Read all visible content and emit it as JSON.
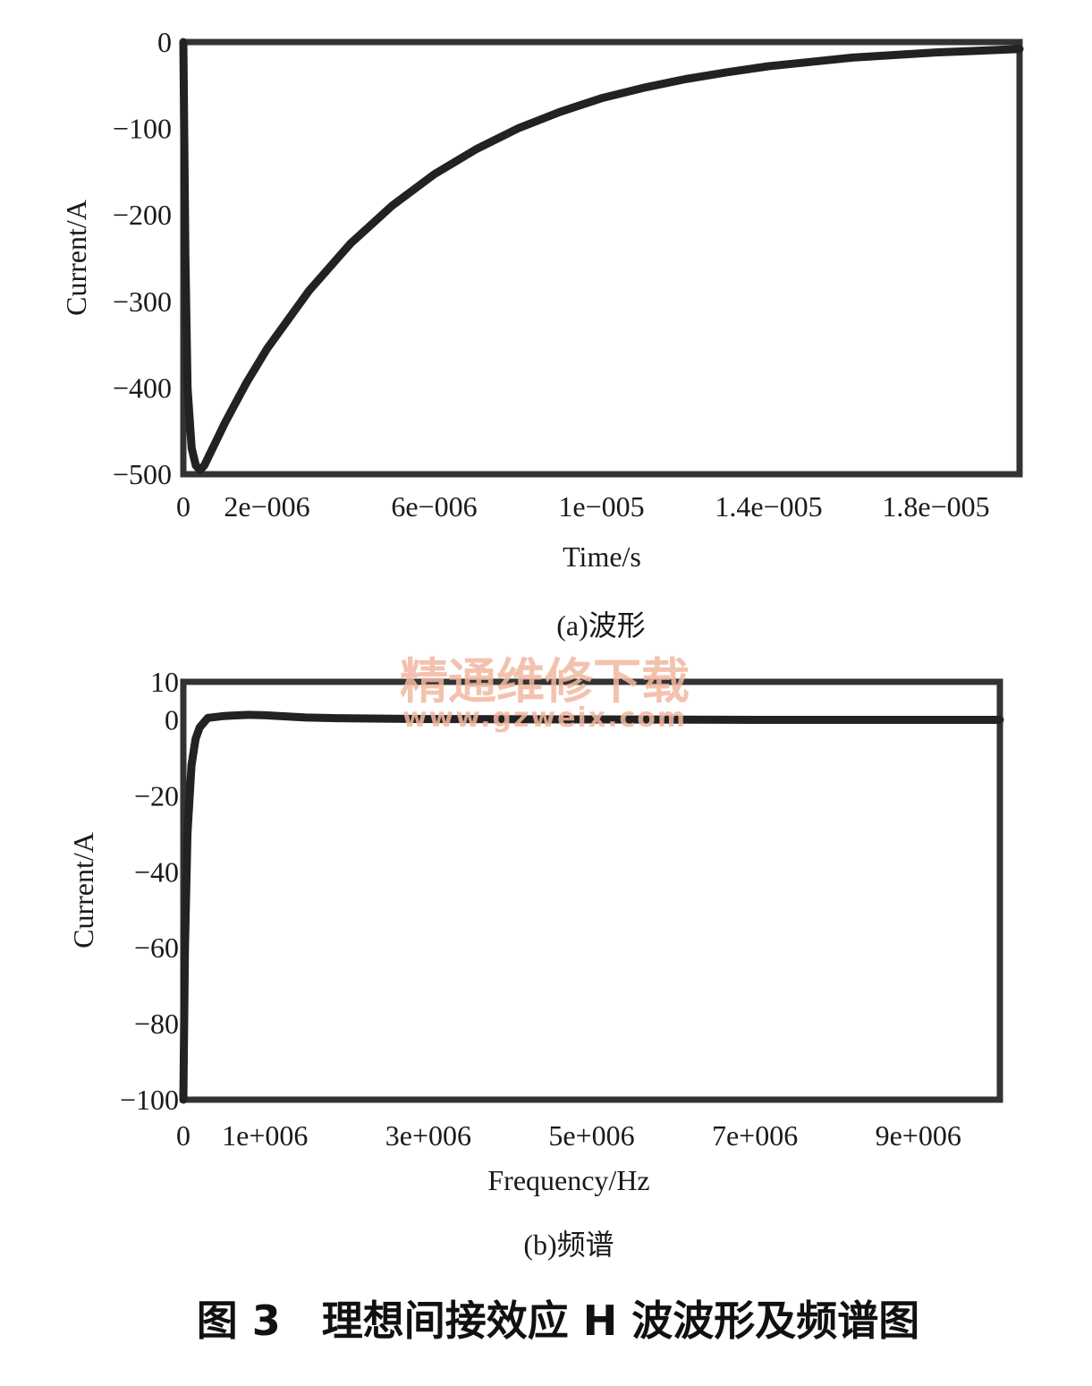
{
  "chart_data": [
    {
      "type": "line",
      "caption": "(a)波形",
      "xlabel": "Time/s",
      "ylabel": "Current/A",
      "xlim": [
        0,
        2e-05
      ],
      "ylim": [
        -500,
        0
      ],
      "x_ticks": [
        {
          "value": 0,
          "label": "0"
        },
        {
          "value": 2e-06,
          "label": "2e−006"
        },
        {
          "value": 6e-06,
          "label": "6e−006"
        },
        {
          "value": 1e-05,
          "label": "1e−005"
        },
        {
          "value": 1.4e-05,
          "label": "1.4e−005"
        },
        {
          "value": 1.8e-05,
          "label": "1.8e−005"
        }
      ],
      "y_ticks": [
        {
          "value": 0,
          "label": "0"
        },
        {
          "value": -100,
          "label": "−100"
        },
        {
          "value": -200,
          "label": "−200"
        },
        {
          "value": -300,
          "label": "−300"
        },
        {
          "value": -400,
          "label": "−400"
        },
        {
          "value": -500,
          "label": "−500"
        }
      ],
      "series": [
        {
          "x": [
            0,
            5e-08,
            1e-07,
            2e-07,
            3e-07,
            4e-07,
            5e-07,
            8e-07,
            1e-06,
            1.5e-06,
            2e-06,
            3e-06,
            4e-06,
            5e-06,
            6e-06,
            7e-06,
            8e-06,
            9e-06,
            1e-05,
            1.1e-05,
            1.2e-05,
            1.3e-05,
            1.4e-05,
            1.5e-05,
            1.6e-05,
            1.7e-05,
            1.8e-05,
            1.9e-05,
            2e-05
          ],
          "y": [
            0,
            -250,
            -400,
            -470,
            -490,
            -495,
            -490,
            -460,
            -440,
            -395,
            -355,
            -288,
            -233,
            -189,
            -153,
            -124,
            -100,
            -81,
            -65,
            -53,
            -43,
            -35,
            -28,
            -23,
            -18,
            -15,
            -12,
            -10,
            -8
          ]
        }
      ]
    },
    {
      "type": "line",
      "caption": "(b)频谱",
      "xlabel": "Frequency/Hz",
      "ylabel": "Current/A",
      "xlim": [
        0,
        10000000
      ],
      "ylim": [
        -100,
        10
      ],
      "x_ticks": [
        {
          "value": 0,
          "label": "0"
        },
        {
          "value": 1000000,
          "label": "1e+006"
        },
        {
          "value": 3000000,
          "label": "3e+006"
        },
        {
          "value": 5000000,
          "label": "5e+006"
        },
        {
          "value": 7000000,
          "label": "7e+006"
        },
        {
          "value": 9000000,
          "label": "9e+006"
        }
      ],
      "y_ticks": [
        {
          "value": 10,
          "label": "10"
        },
        {
          "value": 0,
          "label": "0"
        },
        {
          "value": -20,
          "label": "−20"
        },
        {
          "value": -40,
          "label": "−40"
        },
        {
          "value": -60,
          "label": "−60"
        },
        {
          "value": -80,
          "label": "−80"
        },
        {
          "value": -100,
          "label": "−100"
        }
      ],
      "series": [
        {
          "x": [
            0,
            20000,
            50000,
            100000,
            150000,
            200000,
            300000,
            500000,
            800000,
            1000000,
            1500000,
            2000000,
            3000000,
            5000000,
            7000000,
            9000000,
            10000000
          ],
          "y": [
            -100,
            -60,
            -30,
            -12,
            -5,
            -2,
            0.5,
            1,
            1.3,
            1.2,
            0.6,
            0.4,
            0.2,
            0.1,
            0,
            0,
            0
          ]
        }
      ]
    }
  ],
  "figure_caption": "图 3　理想间接效应 H 波波形及频谱图",
  "watermark": {
    "line1": "精通维修下载",
    "line2": "www.gzweix.com"
  }
}
